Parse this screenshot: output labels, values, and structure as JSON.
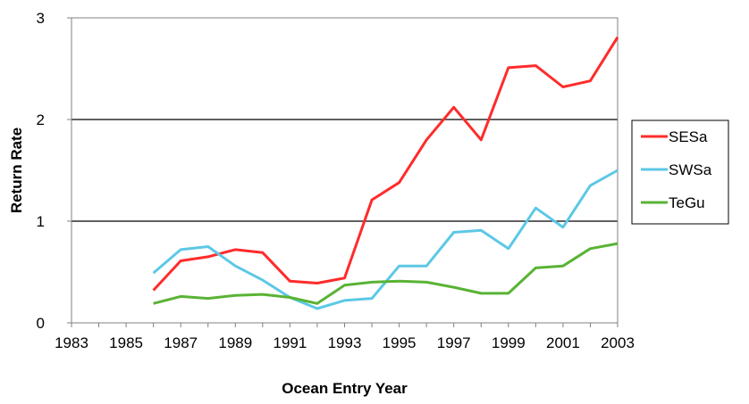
{
  "chart_data": {
    "type": "line",
    "xlabel": "Ocean Entry Year",
    "ylabel": "Return Rate",
    "xlim": [
      1983,
      2003
    ],
    "ylim": [
      0,
      3
    ],
    "x_ticks": [
      "1983",
      "1985",
      "1987",
      "1989",
      "1991",
      "1993",
      "1995",
      "1997",
      "1999",
      "2001",
      "2003"
    ],
    "y_ticks": [
      "0",
      "1",
      "2",
      "3"
    ],
    "grid": "horizontal major lines",
    "legend_position": "right",
    "series": [
      {
        "name": "SESa",
        "color": "#ff2b2b",
        "points": [
          [
            1986,
            0.32
          ],
          [
            1987,
            0.61
          ],
          [
            1988,
            0.65
          ],
          [
            1989,
            0.72
          ],
          [
            1990,
            0.69
          ],
          [
            1991,
            0.41
          ],
          [
            1992,
            0.39
          ],
          [
            1993,
            0.44
          ],
          [
            1994,
            1.21
          ],
          [
            1995,
            1.38
          ],
          [
            1996,
            1.8
          ],
          [
            1997,
            2.12
          ],
          [
            1998,
            1.8
          ],
          [
            1999,
            2.51
          ],
          [
            2000,
            2.53
          ],
          [
            2001,
            2.32
          ],
          [
            2002,
            2.38
          ],
          [
            2003,
            2.81
          ]
        ]
      },
      {
        "name": "SWSa",
        "color": "#5cc8e6",
        "points": [
          [
            1986,
            0.49
          ],
          [
            1987,
            0.72
          ],
          [
            1988,
            0.75
          ],
          [
            1989,
            0.56
          ],
          [
            1990,
            0.42
          ],
          [
            1991,
            0.25
          ],
          [
            1992,
            0.14
          ],
          [
            1993,
            0.22
          ],
          [
            1994,
            0.24
          ],
          [
            1995,
            0.56
          ],
          [
            1996,
            0.56
          ],
          [
            1997,
            0.89
          ],
          [
            1998,
            0.91
          ],
          [
            1999,
            0.73
          ],
          [
            2000,
            1.13
          ],
          [
            2001,
            0.94
          ],
          [
            2002,
            1.35
          ],
          [
            2003,
            1.5
          ]
        ]
      },
      {
        "name": "TeGu",
        "color": "#59b334",
        "points": [
          [
            1986,
            0.19
          ],
          [
            1987,
            0.26
          ],
          [
            1988,
            0.24
          ],
          [
            1989,
            0.27
          ],
          [
            1990,
            0.28
          ],
          [
            1991,
            0.25
          ],
          [
            1992,
            0.19
          ],
          [
            1993,
            0.37
          ],
          [
            1994,
            0.4
          ],
          [
            1995,
            0.41
          ],
          [
            1996,
            0.4
          ],
          [
            1997,
            0.35
          ],
          [
            1998,
            0.29
          ],
          [
            1999,
            0.29
          ],
          [
            2000,
            0.54
          ],
          [
            2001,
            0.56
          ],
          [
            2002,
            0.73
          ],
          [
            2003,
            0.78
          ]
        ]
      }
    ]
  }
}
